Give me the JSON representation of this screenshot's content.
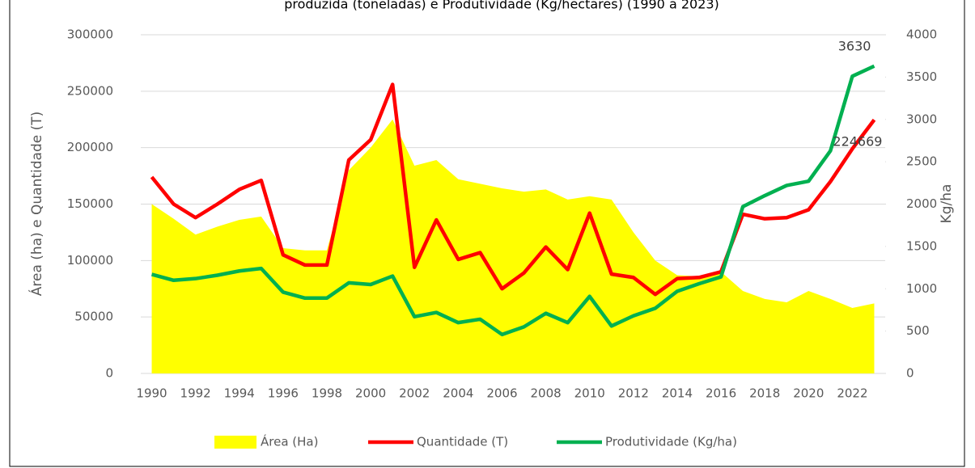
{
  "chart_data": {
    "type": "line",
    "title": "produzida (toneladas) e Produtividade (Kg/hectares) (1990 a 2023)",
    "y_label": "Área (ha) e Quantidade (T)",
    "y2_label": "Kg/ha",
    "categories": [
      "1990",
      null,
      "1992",
      null,
      "1994",
      null,
      "1996",
      null,
      "1998",
      null,
      "2000",
      null,
      "2002",
      null,
      "2004",
      null,
      "2006",
      null,
      "2008",
      null,
      "2010",
      null,
      "2012",
      null,
      "2014",
      null,
      "2016",
      null,
      "2018",
      null,
      "2020",
      null,
      "2022",
      null
    ],
    "series": [
      {
        "name": "Área (Ha)",
        "kind": "area",
        "color": "#ffff00",
        "values": [
          150000,
          137000,
          123000,
          130000,
          136000,
          139000,
          111000,
          109000,
          109000,
          180000,
          200000,
          225000,
          184000,
          189000,
          172000,
          168000,
          164000,
          161000,
          163000,
          154000,
          157000,
          154000,
          125000,
          100000,
          87000,
          86000,
          90000,
          73000,
          66000,
          63000,
          73000,
          66000,
          58000,
          62000
        ]
      },
      {
        "name": "Quantidade (T)",
        "kind": "line",
        "color": "#ff0000",
        "values": [
          174000,
          150000,
          138000,
          150000,
          163000,
          171000,
          105000,
          96000,
          96000,
          189000,
          207000,
          256000,
          94000,
          136000,
          101000,
          107000,
          75000,
          89000,
          112000,
          92000,
          142000,
          88000,
          85000,
          70000,
          84000,
          85000,
          90000,
          141000,
          137000,
          138000,
          145000,
          170000,
          199000,
          224669
        ]
      },
      {
        "name": "Produtividade (Kg/ha)",
        "kind": "line",
        "axis": "y2",
        "color": "#00b050",
        "values": [
          1170,
          1100,
          1120,
          1160,
          1210,
          1240,
          960,
          890,
          890,
          1070,
          1050,
          1150,
          670,
          720,
          600,
          640,
          460,
          550,
          710,
          600,
          910,
          560,
          680,
          770,
          970,
          1060,
          1140,
          1970,
          2100,
          2220,
          2270,
          2630,
          3510,
          3630
        ]
      }
    ],
    "ylim": [
      0,
      300000
    ],
    "yticks": [
      0,
      50000,
      100000,
      150000,
      200000,
      250000,
      300000
    ],
    "y2lim": [
      0,
      4000
    ],
    "y2ticks": [
      0,
      500,
      1000,
      1500,
      2000,
      2500,
      3000,
      3500,
      4000
    ],
    "legend": "bottom"
  }
}
